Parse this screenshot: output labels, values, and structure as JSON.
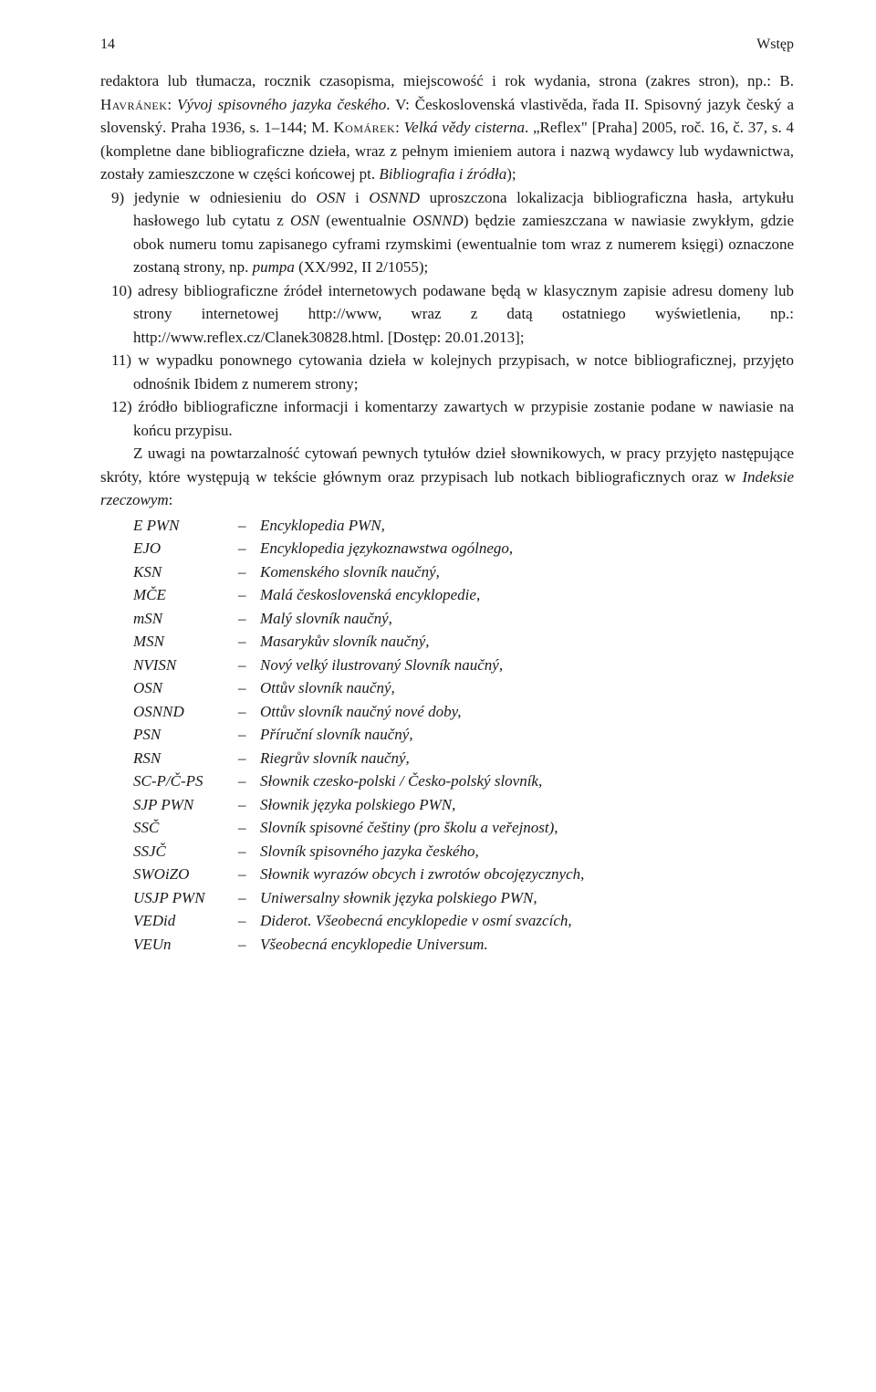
{
  "page_number": "14",
  "section": "Wstęp",
  "intro_run1": "redaktora lub tłumacza, rocznik czasopisma, miejscowość i rok wydania, strona (zakres stron), np.: B. ",
  "intro_sc1": "Havránek",
  "intro_run2": ": ",
  "intro_it1": "Vývoj spisovného jazyka českého",
  "intro_run3": ". V: Československá vlastivěda, řada II. Spisovný jazyk český a slovenský. Praha 1936, s. 1–144; M. ",
  "intro_sc2": "Komárek",
  "intro_run4": ": ",
  "intro_it2": "Velká vědy cisterna",
  "intro_run5": ". „Reflex\" [Praha] 2005, roč. 16, č. 37, s. 4 (kompletne dane bibliograficzne dzieła, wraz z pełnym imieniem autora i nazwą wydawcy lub wydawnictwa, zostały zamieszczone w części końcowej pt. ",
  "intro_it3": "Bibliografia i źródła",
  "intro_run6": ");",
  "li9_a": "9) jedynie w odniesieniu do ",
  "li9_it1": "OSN",
  "li9_b": " i ",
  "li9_it2": "OSNND",
  "li9_c": " uproszczona lokalizacja bibliogra­ficzna hasła, artykułu hasłowego lub cytatu z ",
  "li9_it3": "OSN",
  "li9_d": " (ewentualnie ",
  "li9_it4": "OSNND",
  "li9_e": ") będzie zamieszczana w nawiasie zwykłym, gdzie obok numeru tomu zapi­sanego cyframi rzymskimi (ewentualnie tom wraz z numerem księgi) ozna­czone zostaną strony, np. ",
  "li9_it5": "pumpa",
  "li9_f": " (XX/992, II 2/1055);",
  "li10": "10) adresy bibliograficzne źródeł internetowych podawane będą w klasycznym zapisie adresu domeny lub strony internetowej http://www, wraz z datą ostatniego wyświetlenia, np.: http://www.reflex.cz/Clanek30828.html. [Dostęp: 20.01.2013];",
  "li11": "11) w wypadku ponownego cytowania dzieła w kolejnych przypisach, w notce bibliograficznej, przyjęto odnośnik Ibidem z numerem strony;",
  "li12": "12) źródło bibliograficzne informacji i komentarzy zawartych w przypisie zostanie podane w nawiasie na końcu przypisu.",
  "cont_a": "Z uwagi na powtarzalność cytowań pewnych tytułów dzieł słownikowych, w pracy przyjęto następujące skróty, które występują w tekście głównym oraz przypisach lub notkach bibliograficznych oraz w ",
  "cont_it": "Indeksie rzeczowym",
  "cont_b": ":",
  "abbrevs": [
    {
      "k": "E PWN",
      "v": "Encyklopedia PWN,"
    },
    {
      "k": "EJO",
      "v": "Encyklopedia językoznawstwa ogólnego,"
    },
    {
      "k": "KSN",
      "v": "Komenského slovník naučný,"
    },
    {
      "k": "MČE",
      "v": "Malá československá encyklopedie,"
    },
    {
      "k": "mSN",
      "v": "Malý slovník naučný,"
    },
    {
      "k": "MSN",
      "v": "Masarykův slovník naučný,"
    },
    {
      "k": "NVISN",
      "v": "Nový velký ilustrovaný Slovník naučný,"
    },
    {
      "k": "OSN",
      "v": "Ottův slovník naučný,"
    },
    {
      "k": "OSNND",
      "v": "Ottův slovník naučný nové doby,"
    },
    {
      "k": "PSN",
      "v": "Příruční slovník naučný,"
    },
    {
      "k": "RSN",
      "v": "Riegrův slovník naučný,"
    },
    {
      "k": "SC-P/Č-PS",
      "v": "Słownik czesko-polski / Česko-polský slovník,"
    },
    {
      "k": "SJP PWN",
      "v": "Słownik języka polskiego PWN,"
    },
    {
      "k": "SSČ",
      "v": "Slovník spisovné češtiny (pro školu a veřejnost),"
    },
    {
      "k": "SSJČ",
      "v": "Slovník spisovného jazyka českého,"
    },
    {
      "k": "SWOiZO",
      "v": "Słownik wyrazów obcych i zwrotów obcojęzycznych,"
    },
    {
      "k": "USJP PWN",
      "v": "Uniwersalny słownik języka polskiego PWN,"
    },
    {
      "k": "VEDid",
      "v": "Diderot. Všeobecná encyklopedie v osmí svazcích,"
    },
    {
      "k": "VEUn",
      "v": "Všeobecná encyklopedie Universum."
    }
  ]
}
